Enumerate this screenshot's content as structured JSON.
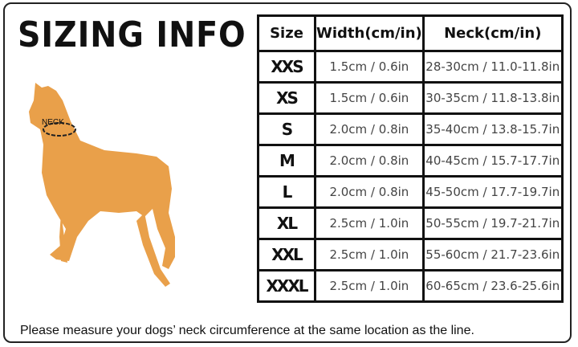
{
  "title": "SIZING INFO",
  "illustration": {
    "neck_label": "NECK",
    "dog_color": "#e9a04a"
  },
  "table": {
    "headers": [
      "Size",
      "Width(cm/in)",
      "Neck(cm/in)"
    ],
    "rows": [
      {
        "size": "XXS",
        "width": "1.5cm / 0.6in",
        "neck": "28-30cm / 11.0-11.8in"
      },
      {
        "size": "XS",
        "width": "1.5cm / 0.6in",
        "neck": "30-35cm / 11.8-13.8in"
      },
      {
        "size": "S",
        "width": "2.0cm / 0.8in",
        "neck": "35-40cm / 13.8-15.7in"
      },
      {
        "size": "M",
        "width": "2.0cm / 0.8in",
        "neck": "40-45cm / 15.7-17.7in"
      },
      {
        "size": "L",
        "width": "2.0cm / 0.8in",
        "neck": "45-50cm / 17.7-19.7in"
      },
      {
        "size": "XL",
        "width": "2.5cm / 1.0in",
        "neck": "50-55cm / 19.7-21.7in"
      },
      {
        "size": "XXL",
        "width": "2.5cm / 1.0in",
        "neck": "55-60cm / 21.7-23.6in"
      },
      {
        "size": "XXXL",
        "width": "2.5cm / 1.0in",
        "neck": "60-65cm / 23.6-25.6in"
      }
    ]
  },
  "note": "Please measure your dogs’  neck circumference at the same location as the line."
}
